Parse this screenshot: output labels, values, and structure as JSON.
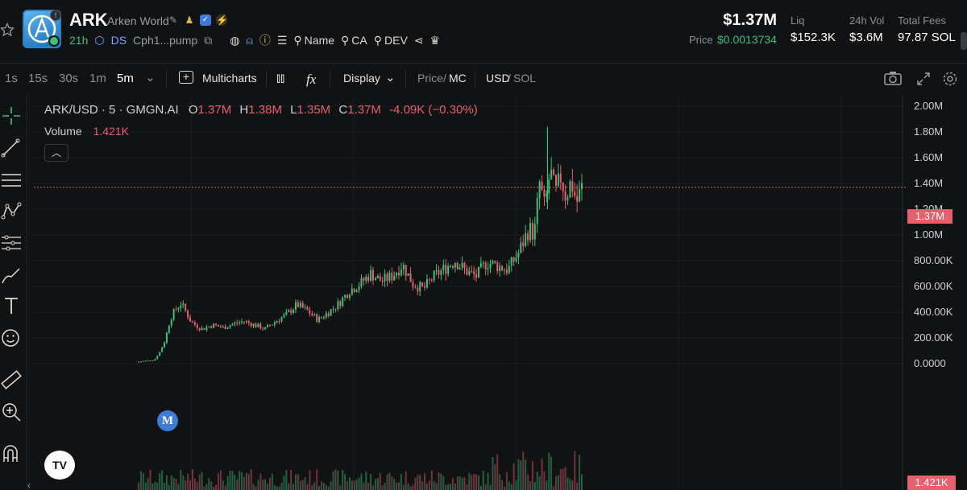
{
  "token": {
    "ticker": "ARK",
    "name": "Arken World",
    "age": "21h",
    "ds_label": "DS",
    "address": "Cph1...pump",
    "links": [
      "Name",
      "CA",
      "DEV"
    ]
  },
  "stats": {
    "market_cap": "$1.37M",
    "price_label": "Price",
    "price": "$0.0013734",
    "liq_label": "Liq",
    "liq": "$152.3K",
    "vol_label": "24h Vol",
    "vol": "$3.6M",
    "fees_label": "Total Fees",
    "fees": "97.87 SOL"
  },
  "toolbar": {
    "intervals": [
      "1s",
      "15s",
      "30s",
      "1m",
      "5m"
    ],
    "active_interval": "5m",
    "multicharts": "Multicharts",
    "display": "Display",
    "price_label": "Price",
    "mc_label": "MC",
    "usd_label": "USD",
    "sol_label": "SOL"
  },
  "legend": {
    "symbol": "ARK/USD · 5 · GMGN.AI",
    "o_label": "O",
    "o": "1.37M",
    "h_label": "H",
    "h": "1.38M",
    "l_label": "L",
    "l": "1.35M",
    "c_label": "C",
    "c": "1.37M",
    "change": "-4.09K (−0.30%)",
    "volume_label": "Volume",
    "volume": "1.421K"
  },
  "markers": {
    "migration": "M",
    "tv": "TV"
  },
  "price_tag": "1.37M",
  "volume_tag": "1.421K",
  "colors": {
    "up": "#3fbf7a",
    "down": "#e5606a",
    "bg": "#111214"
  },
  "chart_data": {
    "type": "candlestick",
    "interval": "5m",
    "y_ticks": [
      "2.00M",
      "1.80M",
      "1.60M",
      "1.40M",
      "1.20M",
      "1.00M",
      "800.00K",
      "600.00K",
      "400.00K",
      "200.00K",
      "0.0000"
    ],
    "ylim": [
      0,
      2000000
    ],
    "last_price": 1370000,
    "close_path": [
      [
        0,
        15000
      ],
      [
        6,
        30000
      ],
      [
        8,
        90000
      ],
      [
        10,
        180000
      ],
      [
        12,
        350000
      ],
      [
        14,
        420000
      ],
      [
        16,
        470000
      ],
      [
        18,
        400000
      ],
      [
        20,
        320000
      ],
      [
        24,
        270000
      ],
      [
        28,
        300000
      ],
      [
        32,
        280000
      ],
      [
        36,
        310000
      ],
      [
        40,
        330000
      ],
      [
        44,
        300000
      ],
      [
        48,
        270000
      ],
      [
        52,
        330000
      ],
      [
        56,
        380000
      ],
      [
        60,
        460000
      ],
      [
        64,
        410000
      ],
      [
        68,
        340000
      ],
      [
        72,
        400000
      ],
      [
        76,
        470000
      ],
      [
        80,
        570000
      ],
      [
        84,
        620000
      ],
      [
        88,
        700000
      ],
      [
        92,
        640000
      ],
      [
        96,
        680000
      ],
      [
        100,
        770000
      ],
      [
        104,
        620000
      ],
      [
        108,
        580000
      ],
      [
        112,
        680000
      ],
      [
        116,
        740000
      ],
      [
        120,
        800000
      ],
      [
        124,
        720000
      ],
      [
        128,
        680000
      ],
      [
        132,
        790000
      ],
      [
        136,
        760000
      ],
      [
        140,
        730000
      ],
      [
        144,
        860000
      ],
      [
        148,
        1050000
      ],
      [
        150,
        1000000
      ],
      [
        152,
        1400000
      ],
      [
        154,
        1200000
      ],
      [
        156,
        1500000
      ],
      [
        158,
        1310000
      ],
      [
        160,
        1450000
      ],
      [
        162,
        1300000
      ],
      [
        164,
        1420000
      ],
      [
        166,
        1250000
      ],
      [
        168,
        1370000
      ]
    ],
    "spike_high": 1840000
  }
}
